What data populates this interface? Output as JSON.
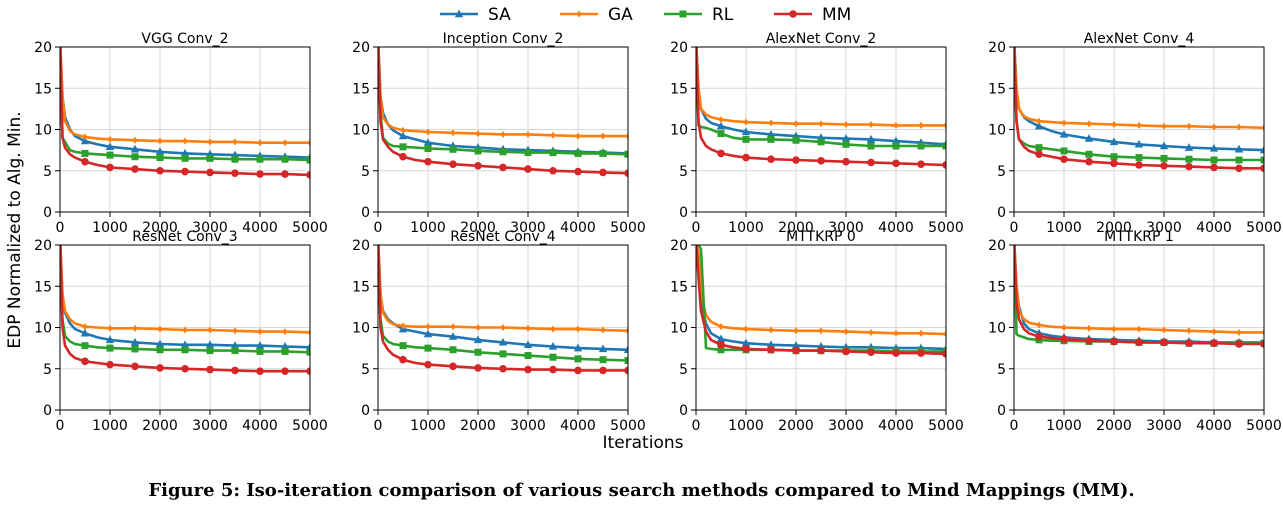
{
  "chart_data": {
    "type": "line",
    "legend": {
      "placement": "top-center",
      "entries": [
        {
          "name": "SA",
          "color": "#1f77b4",
          "marker": "triangle"
        },
        {
          "name": "GA",
          "color": "#ff7f0e",
          "marker": "diamond"
        },
        {
          "name": "RL",
          "color": "#2ca02c",
          "marker": "square"
        },
        {
          "name": "MM",
          "color": "#d62728",
          "marker": "circle"
        }
      ]
    },
    "xlabel": "Iterations",
    "ylabel": "EDP Normalized to Alg. Min.",
    "xlim": [
      0,
      5000
    ],
    "ylim": [
      0,
      20
    ],
    "xticks": [
      0,
      1000,
      2000,
      3000,
      4000,
      5000
    ],
    "yticks": [
      0,
      5,
      10,
      15,
      20
    ],
    "grid": true,
    "x": [
      0,
      50,
      100,
      200,
      300,
      500,
      750,
      1000,
      1500,
      2000,
      2500,
      3000,
      3500,
      4000,
      4500,
      5000
    ],
    "panels": [
      {
        "title": "VGG Conv_2",
        "series": {
          "SA": [
            21,
            14,
            11.5,
            10,
            9.2,
            8.6,
            8.2,
            7.9,
            7.6,
            7.3,
            7.1,
            7.0,
            6.9,
            6.8,
            6.7,
            6.6
          ],
          "GA": [
            21,
            14,
            11,
            9.8,
            9.4,
            9.1,
            8.9,
            8.8,
            8.7,
            8.6,
            8.6,
            8.5,
            8.5,
            8.4,
            8.4,
            8.4
          ],
          "RL": [
            21,
            9,
            8.5,
            7.5,
            7.3,
            7.1,
            7.0,
            6.9,
            6.7,
            6.6,
            6.5,
            6.5,
            6.4,
            6.4,
            6.4,
            6.3
          ],
          "MM": [
            21,
            9,
            7.8,
            7.0,
            6.6,
            6.1,
            5.7,
            5.4,
            5.2,
            5.0,
            4.9,
            4.8,
            4.7,
            4.6,
            4.6,
            4.5
          ]
        }
      },
      {
        "title": "Inception Conv_2",
        "series": {
          "SA": [
            21,
            14,
            12,
            10.6,
            9.9,
            9.2,
            8.8,
            8.4,
            8.0,
            7.8,
            7.6,
            7.5,
            7.4,
            7.3,
            7.2,
            7.1
          ],
          "GA": [
            21,
            14,
            11.5,
            10.6,
            10.2,
            9.9,
            9.8,
            9.7,
            9.6,
            9.5,
            9.4,
            9.4,
            9.3,
            9.2,
            9.2,
            9.2
          ],
          "RL": [
            21,
            12,
            9,
            8.3,
            8.0,
            7.9,
            7.8,
            7.7,
            7.6,
            7.4,
            7.3,
            7.2,
            7.2,
            7.1,
            7.1,
            7.0
          ],
          "MM": [
            21,
            11,
            8.8,
            7.9,
            7.3,
            6.7,
            6.3,
            6.1,
            5.8,
            5.6,
            5.4,
            5.2,
            5.0,
            4.9,
            4.8,
            4.7
          ]
        }
      },
      {
        "title": "AlexNet Conv_2",
        "series": {
          "SA": [
            21,
            15,
            12.5,
            11.3,
            10.8,
            10.4,
            10.0,
            9.7,
            9.4,
            9.2,
            9.0,
            8.9,
            8.8,
            8.6,
            8.4,
            8.2
          ],
          "GA": [
            21,
            15,
            12.5,
            11.8,
            11.5,
            11.2,
            11.0,
            10.9,
            10.8,
            10.7,
            10.7,
            10.6,
            10.6,
            10.5,
            10.5,
            10.5
          ],
          "RL": [
            21,
            10.5,
            10.3,
            10.2,
            10.0,
            9.5,
            9.0,
            8.8,
            8.8,
            8.7,
            8.5,
            8.2,
            8.0,
            8.0,
            8.0,
            8.0
          ],
          "MM": [
            21,
            11,
            9.0,
            8.0,
            7.6,
            7.1,
            6.8,
            6.6,
            6.4,
            6.3,
            6.2,
            6.1,
            6.0,
            5.9,
            5.8,
            5.7
          ]
        }
      },
      {
        "title": "AlexNet Conv_4",
        "series": {
          "SA": [
            21,
            15,
            12.5,
            11.5,
            11.0,
            10.4,
            9.8,
            9.4,
            8.9,
            8.5,
            8.2,
            8.0,
            7.8,
            7.7,
            7.6,
            7.5
          ],
          "GA": [
            21,
            15,
            12.5,
            11.6,
            11.3,
            11.0,
            10.9,
            10.8,
            10.7,
            10.6,
            10.5,
            10.4,
            10.4,
            10.3,
            10.3,
            10.2
          ],
          "RL": [
            21,
            11,
            8.8,
            8.3,
            8.0,
            7.8,
            7.6,
            7.4,
            7.0,
            6.7,
            6.6,
            6.5,
            6.4,
            6.3,
            6.3,
            6.3
          ],
          "MM": [
            21,
            11,
            8.8,
            7.9,
            7.4,
            7.0,
            6.7,
            6.4,
            6.1,
            5.9,
            5.7,
            5.6,
            5.5,
            5.4,
            5.3,
            5.3
          ]
        }
      },
      {
        "title": "ResNet Conv_3",
        "series": {
          "SA": [
            21,
            14,
            11.8,
            10.5,
            9.8,
            9.3,
            8.8,
            8.5,
            8.2,
            8.0,
            7.9,
            7.9,
            7.8,
            7.8,
            7.7,
            7.6
          ],
          "GA": [
            21,
            14,
            12,
            11,
            10.5,
            10.1,
            10.0,
            9.9,
            9.9,
            9.8,
            9.7,
            9.7,
            9.6,
            9.5,
            9.5,
            9.4
          ],
          "RL": [
            21,
            11,
            9.0,
            8.3,
            8.0,
            7.8,
            7.6,
            7.5,
            7.4,
            7.3,
            7.3,
            7.2,
            7.2,
            7.1,
            7.1,
            7.0
          ],
          "MM": [
            21,
            10,
            7.8,
            6.8,
            6.3,
            5.9,
            5.7,
            5.5,
            5.3,
            5.1,
            5.0,
            4.9,
            4.8,
            4.7,
            4.7,
            4.7
          ]
        }
      },
      {
        "title": "ResNet Conv_4",
        "series": {
          "SA": [
            21,
            14,
            12,
            11,
            10.5,
            9.8,
            9.5,
            9.2,
            8.9,
            8.5,
            8.2,
            7.9,
            7.7,
            7.5,
            7.4,
            7.3
          ],
          "GA": [
            21,
            14,
            11.8,
            10.8,
            10.4,
            10.2,
            10.1,
            10.1,
            10.1,
            10.0,
            10.0,
            9.9,
            9.8,
            9.8,
            9.7,
            9.6
          ],
          "RL": [
            21,
            11,
            9.0,
            8.3,
            8.0,
            7.8,
            7.6,
            7.5,
            7.3,
            7.0,
            6.8,
            6.6,
            6.4,
            6.2,
            6.1,
            6.0
          ],
          "MM": [
            21,
            10,
            8.3,
            7.3,
            6.7,
            6.1,
            5.7,
            5.5,
            5.3,
            5.1,
            5.0,
            4.9,
            4.9,
            4.8,
            4.8,
            4.8
          ]
        }
      },
      {
        "title": "MTTKRP 0",
        "series": {
          "SA": [
            21,
            17,
            13,
            10.5,
            9.3,
            8.6,
            8.3,
            8.1,
            7.9,
            7.8,
            7.7,
            7.6,
            7.6,
            7.5,
            7.5,
            7.4
          ],
          "GA": [
            21,
            19,
            14,
            11.5,
            10.7,
            10.1,
            9.9,
            9.8,
            9.7,
            9.6,
            9.6,
            9.5,
            9.4,
            9.3,
            9.3,
            9.2
          ],
          "RL": [
            21,
            20,
            19.5,
            7.5,
            7.4,
            7.3,
            7.3,
            7.3,
            7.3,
            7.2,
            7.2,
            7.2,
            7.2,
            7.1,
            7.1,
            7.1
          ],
          "MM": [
            21,
            16,
            12,
            9.5,
            8.5,
            7.9,
            7.6,
            7.4,
            7.3,
            7.2,
            7.2,
            7.1,
            7.0,
            6.9,
            6.9,
            6.8
          ]
        }
      },
      {
        "title": "MTTKRP 1",
        "series": {
          "SA": [
            21,
            15,
            12.5,
            10.5,
            9.8,
            9.3,
            9.0,
            8.8,
            8.6,
            8.5,
            8.4,
            8.3,
            8.3,
            8.2,
            8.2,
            8.2
          ],
          "GA": [
            21,
            15,
            12,
            11,
            10.6,
            10.3,
            10.1,
            10.0,
            9.9,
            9.8,
            9.8,
            9.7,
            9.6,
            9.5,
            9.4,
            9.4
          ],
          "RL": [
            21,
            9.2,
            9.0,
            8.8,
            8.6,
            8.5,
            8.4,
            8.4,
            8.3,
            8.3,
            8.2,
            8.2,
            8.1,
            8.1,
            8.1,
            8.1
          ],
          "MM": [
            21,
            13,
            11,
            9.8,
            9.3,
            8.9,
            8.7,
            8.6,
            8.4,
            8.3,
            8.2,
            8.2,
            8.1,
            8.1,
            8.0,
            8.0
          ]
        }
      }
    ]
  },
  "caption": "Figure 5: Iso-iteration comparison of various search methods compared to Mind Mappings (MM)."
}
